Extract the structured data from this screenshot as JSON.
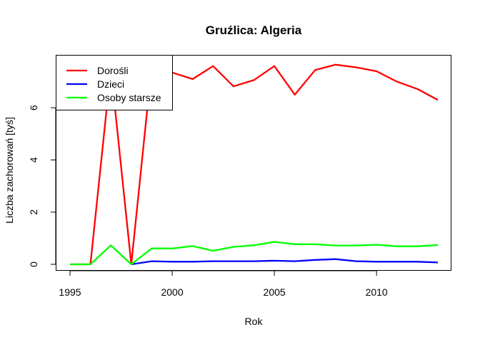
{
  "chart_data": {
    "type": "line",
    "title": "Gruźlica: Algeria",
    "xlabel": "Rok",
    "ylabel": "Liczba zachorowań [tyś]",
    "xlim": [
      1995,
      2013
    ],
    "ylim": [
      0,
      7.7
    ],
    "xticks": [
      1995,
      2000,
      2005,
      2010
    ],
    "yticks": [
      0,
      2,
      4,
      6
    ],
    "grid": false,
    "legend_position": "top-left",
    "x": [
      1995,
      1996,
      1997,
      1998,
      1999,
      2000,
      2001,
      2002,
      2003,
      2004,
      2005,
      2006,
      2007,
      2008,
      2009,
      2010,
      2011,
      2012,
      2013
    ],
    "series": [
      {
        "name": "Dorośli",
        "color": "#ff0000",
        "values": [
          0,
          0,
          7.5,
          0,
          7.6,
          7.35,
          7.1,
          7.6,
          6.82,
          7.06,
          7.6,
          6.5,
          7.45,
          7.65,
          7.55,
          7.4,
          7.0,
          6.72,
          6.3
        ]
      },
      {
        "name": "Dzieci",
        "color": "#0000ff",
        "values": [
          null,
          null,
          null,
          0,
          0.12,
          0.1,
          0.1,
          0.12,
          0.12,
          0.12,
          0.14,
          0.12,
          0.17,
          0.2,
          0.12,
          0.1,
          0.1,
          0.1,
          0.07
        ]
      },
      {
        "name": "Osoby starsze",
        "color": "#00ff00",
        "values": [
          0,
          0,
          0.73,
          0,
          0.61,
          0.61,
          0.7,
          0.52,
          0.67,
          0.73,
          0.86,
          0.77,
          0.77,
          0.72,
          0.72,
          0.75,
          0.69,
          0.69,
          0.74
        ]
      }
    ]
  }
}
